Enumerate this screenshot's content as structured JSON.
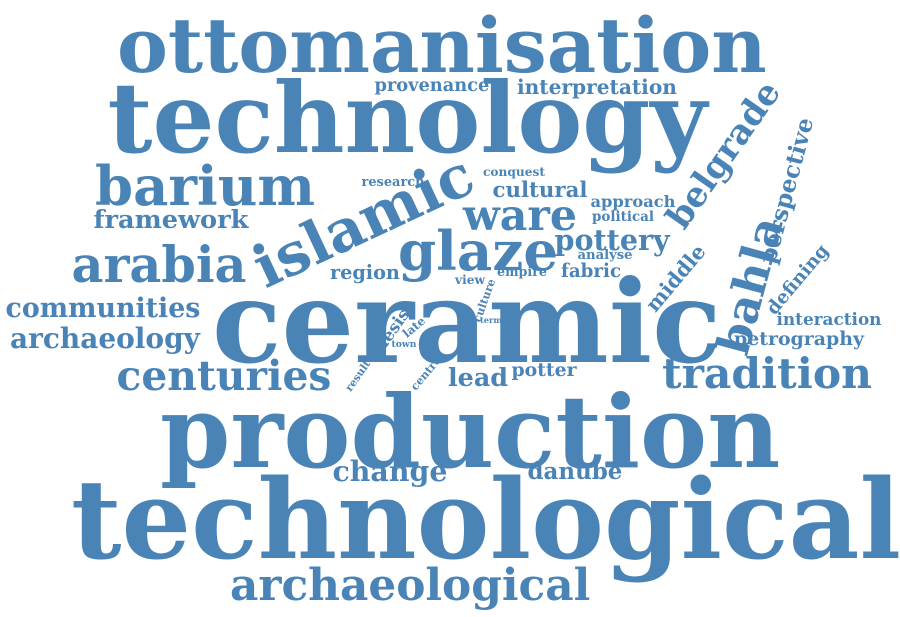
{
  "colors": {
    "background": "#ffffff",
    "word": "#4a84b7"
  },
  "words": [
    {
      "id": "ottomanisation",
      "text": "ottomanisation"
    },
    {
      "id": "technology",
      "text": "technology"
    },
    {
      "id": "provenance",
      "text": "provenance"
    },
    {
      "id": "interpretation",
      "text": "interpretation"
    },
    {
      "id": "barium",
      "text": "barium"
    },
    {
      "id": "islamic",
      "text": "islamic"
    },
    {
      "id": "belgrade",
      "text": "belgrade"
    },
    {
      "id": "perspective",
      "text": "perspective"
    },
    {
      "id": "research",
      "text": "research"
    },
    {
      "id": "conquest",
      "text": "conquest"
    },
    {
      "id": "cultural",
      "text": "cultural"
    },
    {
      "id": "approach",
      "text": "approach"
    },
    {
      "id": "political",
      "text": "political"
    },
    {
      "id": "framework",
      "text": "framework"
    },
    {
      "id": "ware",
      "text": "ware"
    },
    {
      "id": "glaze",
      "text": "glaze"
    },
    {
      "id": "pottery",
      "text": "pottery"
    },
    {
      "id": "analyse",
      "text": "analyse"
    },
    {
      "id": "arabia",
      "text": "arabia"
    },
    {
      "id": "region",
      "text": "region"
    },
    {
      "id": "view",
      "text": "view"
    },
    {
      "id": "empire",
      "text": "empire"
    },
    {
      "id": "fabric",
      "text": "fabric"
    },
    {
      "id": "middle",
      "text": "middle"
    },
    {
      "id": "bahla",
      "text": "bahla"
    },
    {
      "id": "defining",
      "text": "defining"
    },
    {
      "id": "communities",
      "text": "communities"
    },
    {
      "id": "ceramic",
      "text": "ceramic"
    },
    {
      "id": "culture",
      "text": "culture"
    },
    {
      "id": "term",
      "text": "term"
    },
    {
      "id": "thesis",
      "text": "thesis"
    },
    {
      "id": "late",
      "text": "late"
    },
    {
      "id": "town",
      "text": "town"
    },
    {
      "id": "interaction",
      "text": "interaction"
    },
    {
      "id": "archaeology",
      "text": "archaeology"
    },
    {
      "id": "petrography",
      "text": "petrography"
    },
    {
      "id": "centuries",
      "text": "centuries"
    },
    {
      "id": "result",
      "text": "result"
    },
    {
      "id": "centre",
      "text": "centre"
    },
    {
      "id": "lead",
      "text": "lead"
    },
    {
      "id": "potter",
      "text": "potter"
    },
    {
      "id": "tradition",
      "text": "tradition"
    },
    {
      "id": "production",
      "text": "production"
    },
    {
      "id": "change",
      "text": "change"
    },
    {
      "id": "danube",
      "text": "danube"
    },
    {
      "id": "technological",
      "text": "technological"
    },
    {
      "id": "archaeological",
      "text": "archaeological"
    }
  ]
}
